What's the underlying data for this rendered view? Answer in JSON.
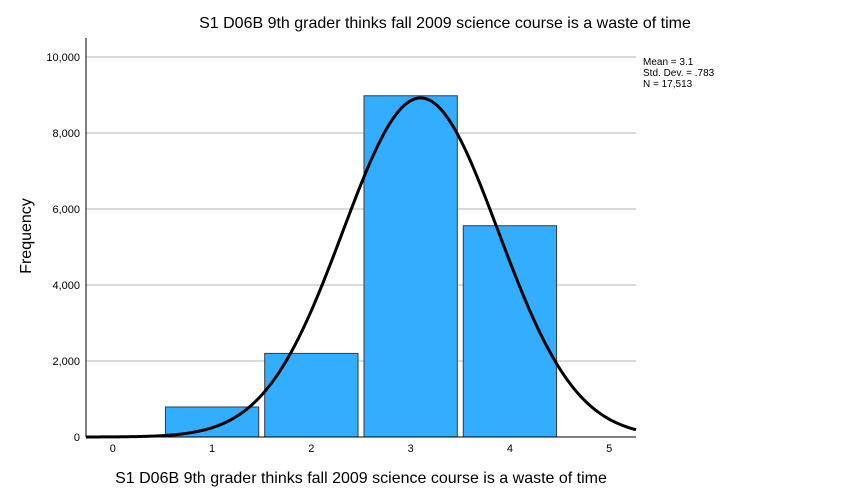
{
  "chart_data": {
    "type": "bar",
    "title": "S1 D06B 9th grader thinks fall 2009 science course is a waste of time",
    "xlabel": "S1 D06B 9th grader thinks fall 2009 science course is a waste of time",
    "ylabel": "Frequency",
    "categories": [
      1,
      2,
      3,
      4
    ],
    "values": [
      790,
      2200,
      8980,
      5560
    ],
    "xlim": [
      -0.27,
      5.27
    ],
    "ylim": [
      0,
      10500
    ],
    "x_ticks": [
      "0",
      "1",
      "2",
      "3",
      "4",
      "5"
    ],
    "y_ticks": [
      "0",
      "2,000",
      "4,000",
      "6,000",
      "8,000",
      "10,000"
    ],
    "y_tick_values": [
      0,
      2000,
      4000,
      6000,
      8000,
      10000
    ],
    "grid": "horizontal",
    "bar_color": "#33adff",
    "normal_curve": {
      "mean": 3.1,
      "sd": 0.783,
      "n": 17513,
      "bin_width": 1
    },
    "stats": [
      "Mean = 3.1",
      "Std. Dev. = .783",
      "N = 17,513"
    ]
  }
}
